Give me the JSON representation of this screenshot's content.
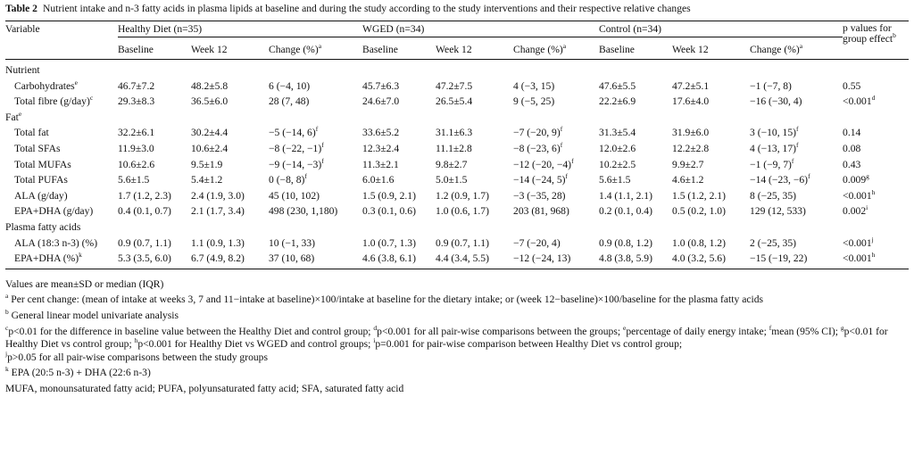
{
  "caption": {
    "label": "Table 2",
    "text": "Nutrient intake and n-3 fatty acids in plasma lipids at baseline and during the study according to the study interventions and their respective relative changes"
  },
  "header": {
    "variable": "Variable",
    "groups": [
      "Healthy Diet (n=35)",
      "WGED (n=34)",
      "Control (n=34)"
    ],
    "pvalue_line1": "p values for",
    "pvalue_line2": "group effect",
    "pvalue_sup": "b",
    "subcols": [
      "Baseline",
      "Week 12",
      "Change (%)"
    ],
    "change_sup": "a"
  },
  "rows": [
    {
      "label": "Nutrient",
      "section": true
    },
    {
      "label": "Carbohydrates",
      "lsup": "e",
      "indent": true,
      "cells": [
        "46.7±7.2",
        "48.2±5.8",
        "6 (−4, 10)",
        "45.7±6.3",
        "47.2±7.5",
        "4 (−3, 15)",
        "47.6±5.5",
        "47.2±5.1",
        "−1 (−7, 8)",
        "0.55"
      ],
      "sups": [
        "",
        "",
        "",
        "",
        "",
        "",
        "",
        "",
        "",
        ""
      ]
    },
    {
      "label": "Total fibre (g/day)",
      "lsup": "c",
      "indent": true,
      "cells": [
        "29.3±8.3",
        "36.5±6.0",
        "28 (7, 48)",
        "24.6±7.0",
        "26.5±5.4",
        "9 (−5, 25)",
        "22.2±6.9",
        "17.6±4.0",
        "−16 (−30, 4)",
        "<0.001"
      ],
      "sups": [
        "",
        "",
        "",
        "",
        "",
        "",
        "",
        "",
        "",
        "d"
      ]
    },
    {
      "label": "Fat",
      "lsup": "e",
      "section": true
    },
    {
      "label": "Total fat",
      "indent": true,
      "cells": [
        "32.2±6.1",
        "30.2±4.4",
        "−5 (−14, 6)",
        "33.6±5.2",
        "31.1±6.3",
        "−7 (−20, 9)",
        "31.3±5.4",
        "31.9±6.0",
        "3 (−10, 15)",
        "0.14"
      ],
      "sups": [
        "",
        "",
        "f",
        "",
        "",
        "f",
        "",
        "",
        "f",
        ""
      ]
    },
    {
      "label": "Total SFAs",
      "indent": true,
      "cells": [
        "11.9±3.0",
        "10.6±2.4",
        "−8 (−22, −1)",
        "12.3±2.4",
        "11.1±2.8",
        "−8 (−23, 6)",
        "12.0±2.6",
        "12.2±2.8",
        "4 (−13, 17)",
        "0.08"
      ],
      "sups": [
        "",
        "",
        "f",
        "",
        "",
        "f",
        "",
        "",
        "f",
        ""
      ]
    },
    {
      "label": "Total MUFAs",
      "indent": true,
      "cells": [
        "10.6±2.6",
        "9.5±1.9",
        "−9 (−14, −3)",
        "11.3±2.1",
        "9.8±2.7",
        "−12 (−20, −4)",
        "10.2±2.5",
        "9.9±2.7",
        "−1 (−9, 7)",
        "0.43"
      ],
      "sups": [
        "",
        "",
        "f",
        "",
        "",
        "f",
        "",
        "",
        "f",
        ""
      ]
    },
    {
      "label": "Total PUFAs",
      "indent": true,
      "cells": [
        "5.6±1.5",
        "5.4±1.2",
        "0 (−8, 8)",
        "6.0±1.6",
        "5.0±1.5",
        "−14 (−24, 5)",
        "5.6±1.5",
        "4.6±1.2",
        "−14 (−23, −6)",
        "0.009"
      ],
      "sups": [
        "",
        "",
        "f",
        "",
        "",
        "f",
        "",
        "",
        "f",
        "g"
      ]
    },
    {
      "label": "ALA (g/day)",
      "indent": true,
      "cells": [
        "1.7 (1.2, 2.3)",
        "2.4 (1.9, 3.0)",
        "45 (10, 102)",
        "1.5 (0.9, 2.1)",
        "1.2 (0.9, 1.7)",
        "−3 (−35, 28)",
        "1.4 (1.1, 2.1)",
        "1.5 (1.2, 2.1)",
        "8 (−25, 35)",
        "<0.001"
      ],
      "sups": [
        "",
        "",
        "",
        "",
        "",
        "",
        "",
        "",
        "",
        "h"
      ]
    },
    {
      "label": "EPA+DHA (g/day)",
      "indent": true,
      "cells": [
        "0.4 (0.1, 0.7)",
        "2.1 (1.7, 3.4)",
        "498 (230, 1,180)",
        "0.3 (0.1, 0.6)",
        "1.0 (0.6, 1.7)",
        "203 (81, 968)",
        "0.2 (0.1, 0.4)",
        "0.5 (0.2, 1.0)",
        "129 (12, 533)",
        "0.002"
      ],
      "sups": [
        "",
        "",
        "",
        "",
        "",
        "",
        "",
        "",
        "",
        "i"
      ]
    },
    {
      "label": "Plasma fatty acids",
      "section": true
    },
    {
      "label": "ALA (18:3 n-3) (%)",
      "indent": true,
      "cells": [
        "0.9 (0.7, 1.1)",
        "1.1 (0.9, 1.3)",
        "10 (−1, 33)",
        "1.0 (0.7, 1.3)",
        "0.9 (0.7, 1.1)",
        "−7 (−20, 4)",
        "0.9 (0.8, 1.2)",
        "1.0 (0.8, 1.2)",
        "2 (−25, 35)",
        "<0.001"
      ],
      "sups": [
        "",
        "",
        "",
        "",
        "",
        "",
        "",
        "",
        "",
        "j"
      ]
    },
    {
      "label": "EPA+DHA (%)",
      "lsup": "k",
      "indent": true,
      "cells": [
        "5.3 (3.5, 6.0)",
        "6.7 (4.9, 8.2)",
        "37 (10, 68)",
        "4.6 (3.8, 6.1)",
        "4.4 (3.4, 5.5)",
        "−12 (−24, 13)",
        "4.8 (3.8, 5.9)",
        "4.0 (3.2, 5.6)",
        "−15 (−19, 22)",
        "<0.001"
      ],
      "sups": [
        "",
        "",
        "",
        "",
        "",
        "",
        "",
        "",
        "",
        "h"
      ]
    }
  ],
  "footnotes": {
    "values": "Values are mean±SD or median (IQR)",
    "a": "Per cent change: (mean of intake at weeks 3, 7 and 11−intake at baseline)×100/intake at baseline for the dietary intake; or (week 12−baseline)×100/baseline for the plasma fatty acids",
    "b": "General linear model univariate analysis",
    "c": "p<0.01 for the difference in baseline value between the Healthy Diet and control group;",
    "d": "p<0.001 for all pair-wise comparisons between the groups;",
    "e": "percentage of daily energy intake;",
    "f": "mean (95% CI);",
    "g": "p<0.01 for Healthy Diet vs control group;",
    "h": "p<0.001 for Healthy Diet vs WGED and control groups;",
    "i": "p=0.001 for pair-wise comparison between Healthy Diet vs control group;",
    "j": "p>0.05 for all pair-wise comparisons between the study groups",
    "k": "EPA (20:5 n-3) + DHA (22:6 n-3)",
    "abbrev": "MUFA, monounsaturated fatty acid; PUFA, polyunsaturated fatty acid; SFA, saturated fatty acid"
  }
}
